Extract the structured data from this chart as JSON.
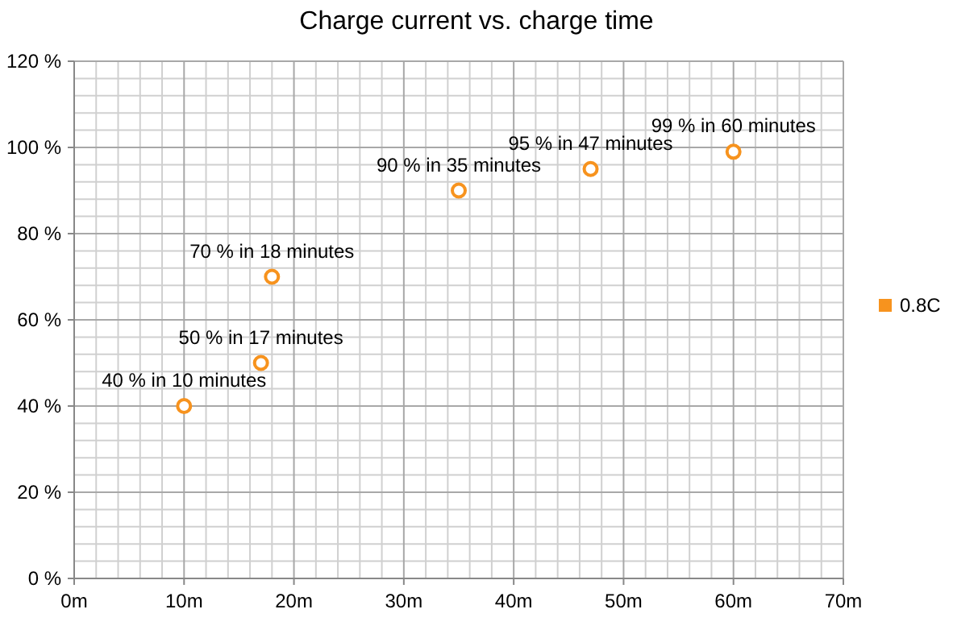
{
  "chart_data": {
    "type": "scatter",
    "title": "Charge current vs. charge time",
    "series": [
      {
        "name": "0.8C",
        "color": "#f7931e",
        "x": [
          10,
          17,
          18,
          35,
          47,
          60
        ],
        "values": [
          40,
          50,
          70,
          90,
          95,
          99
        ],
        "value_labels": [
          "40 % in 10 minutes",
          "50 % in 17 minutes",
          "70 % in 18 minutes",
          "90 % in 35 minutes",
          "95 % in 47 minutes",
          "99 % in 60 minutes"
        ]
      }
    ],
    "xlim": [
      0,
      70
    ],
    "xticks": [
      {
        "value": 0,
        "label": "0m"
      },
      {
        "value": 10,
        "label": "10m"
      },
      {
        "value": 20,
        "label": "20m"
      },
      {
        "value": 30,
        "label": "30m"
      },
      {
        "value": 40,
        "label": "40m"
      },
      {
        "value": 50,
        "label": "50m"
      },
      {
        "value": 60,
        "label": "60m"
      },
      {
        "value": 70,
        "label": "70m"
      }
    ],
    "ylim": [
      0,
      120
    ],
    "yticks": [
      {
        "value": 0,
        "label": "0 %"
      },
      {
        "value": 20,
        "label": "20 %"
      },
      {
        "value": 40,
        "label": "40 %"
      },
      {
        "value": 60,
        "label": "60 %"
      },
      {
        "value": 80,
        "label": "80 %"
      },
      {
        "value": 100,
        "label": "100 %"
      },
      {
        "value": 120,
        "label": "120 %"
      }
    ],
    "grid": true,
    "legend": "right",
    "marker": "circle"
  }
}
